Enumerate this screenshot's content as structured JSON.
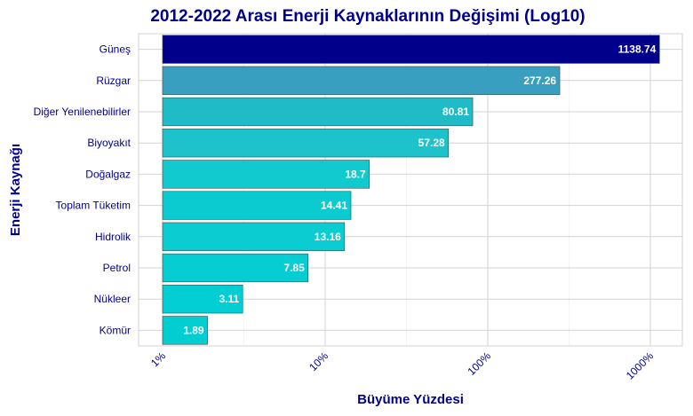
{
  "chart_data": {
    "type": "bar",
    "orientation": "horizontal",
    "title": "2012-2022 Arası Enerji Kaynaklarının Değişimi (Log10)",
    "xlabel": "Büyüme Yüzdesi",
    "ylabel": "Enerji Kaynağı",
    "x_scale": "log10",
    "xlim": [
      1,
      1300
    ],
    "x_ticks": [
      1,
      10,
      100,
      1000
    ],
    "x_tick_labels": [
      "1%",
      "10%",
      "100%",
      "1000%"
    ],
    "grid": true,
    "legend": "none",
    "categories": [
      "Güneş",
      "Rüzgar",
      "Diğer Yenilenebilirler",
      "Biyoyakıt",
      "Doğalgaz",
      "Toplam Tüketim",
      "Hidrolik",
      "Petrol",
      "Nükleer",
      "Kömür"
    ],
    "values": [
      1138.74,
      277.26,
      80.81,
      57.28,
      18.7,
      14.41,
      13.16,
      7.85,
      3.11,
      1.89
    ],
    "value_labels": [
      "1138.74",
      "277.26",
      "80.81",
      "57.28",
      "18.7",
      "14.41",
      "13.16",
      "7.85",
      "3.11",
      "1.89"
    ],
    "colors": [
      "#00008b",
      "#389fc0",
      "#1fbcc8",
      "#1dc2ca",
      "#10cad0",
      "#0ccbd0",
      "#0bccd1",
      "#06cdd2",
      "#02ced3",
      "#00ced1"
    ]
  }
}
